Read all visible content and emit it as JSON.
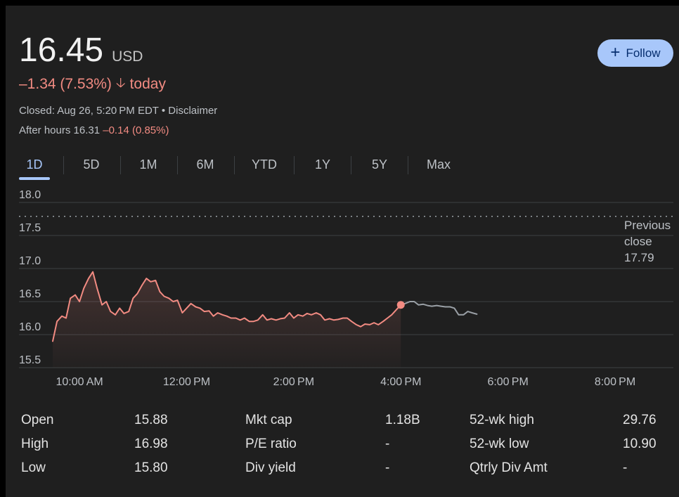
{
  "header": {
    "price": "16.45",
    "currency": "USD",
    "change": "–1.34 (7.53%)",
    "change_suffix": "today",
    "closed_text": "Closed: Aug 26, 5:20 PM EDT",
    "separator": "•",
    "disclaimer": "Disclaimer",
    "after_hours_label": "After hours 16.31",
    "after_hours_change": "–0.14 (0.85%)",
    "negative_color": "#f28b82"
  },
  "follow_button": {
    "label": "Follow",
    "icon": "plus-icon"
  },
  "tabs": [
    {
      "label": "1D",
      "active": true
    },
    {
      "label": "5D",
      "active": false
    },
    {
      "label": "1M",
      "active": false
    },
    {
      "label": "6M",
      "active": false
    },
    {
      "label": "YTD",
      "active": false
    },
    {
      "label": "1Y",
      "active": false
    },
    {
      "label": "5Y",
      "active": false
    },
    {
      "label": "Max",
      "active": false
    }
  ],
  "chart_data": {
    "type": "line",
    "y_ticks": [
      "18.0",
      "17.5",
      "17.0",
      "16.5",
      "16.0",
      "15.5"
    ],
    "ylim": [
      15.5,
      18.0
    ],
    "x_ticks": [
      "10:00 AM",
      "12:00 PM",
      "2:00 PM",
      "4:00 PM",
      "6:00 PM",
      "8:00 PM"
    ],
    "x_range_hours": [
      9.5,
      20.0
    ],
    "previous_close": {
      "label_lines": [
        "Previous",
        "close",
        "17.79"
      ],
      "value": 17.79
    },
    "series": [
      {
        "session": "regular",
        "color": "#f28b82",
        "x": [
          9.5,
          9.58,
          9.67,
          9.75,
          9.83,
          9.92,
          10.0,
          10.08,
          10.17,
          10.25,
          10.33,
          10.42,
          10.5,
          10.58,
          10.67,
          10.75,
          10.83,
          10.92,
          11.0,
          11.08,
          11.17,
          11.25,
          11.33,
          11.42,
          11.5,
          11.58,
          11.67,
          11.75,
          11.83,
          11.92,
          12.0,
          12.08,
          12.17,
          12.25,
          12.33,
          12.42,
          12.5,
          12.58,
          12.67,
          12.75,
          12.83,
          12.92,
          13.0,
          13.08,
          13.17,
          13.25,
          13.33,
          13.42,
          13.5,
          13.58,
          13.67,
          13.75,
          13.83,
          13.92,
          14.0,
          14.08,
          14.17,
          14.25,
          14.33,
          14.42,
          14.5,
          14.58,
          14.67,
          14.75,
          14.83,
          14.92,
          15.0,
          15.08,
          15.17,
          15.25,
          15.33,
          15.42,
          15.5,
          15.58,
          15.67,
          15.75,
          15.83,
          15.92,
          16.0
        ],
        "values": [
          15.9,
          16.2,
          16.28,
          16.25,
          16.55,
          16.6,
          16.5,
          16.7,
          16.85,
          16.95,
          16.7,
          16.45,
          16.5,
          16.35,
          16.3,
          16.4,
          16.32,
          16.35,
          16.55,
          16.62,
          16.75,
          16.85,
          16.8,
          16.82,
          16.65,
          16.58,
          16.55,
          16.5,
          16.52,
          16.33,
          16.4,
          16.47,
          16.42,
          16.4,
          16.35,
          16.36,
          16.28,
          16.33,
          16.3,
          16.28,
          16.25,
          16.25,
          16.22,
          16.25,
          16.2,
          16.2,
          16.22,
          16.3,
          16.22,
          16.24,
          16.22,
          16.24,
          16.25,
          16.33,
          16.25,
          16.3,
          16.28,
          16.32,
          16.3,
          16.33,
          16.3,
          16.22,
          16.24,
          16.22,
          16.23,
          16.25,
          16.25,
          16.2,
          16.15,
          16.12,
          16.16,
          16.15,
          16.18,
          16.15,
          16.2,
          16.25,
          16.3,
          16.38,
          16.45
        ]
      },
      {
        "session": "after-hours",
        "color": "#9aa0a6",
        "x": [
          16.0,
          16.08,
          16.17,
          16.25,
          16.33,
          16.42,
          16.5,
          16.58,
          16.67,
          16.75,
          16.83,
          16.92,
          17.0,
          17.08,
          17.17,
          17.25,
          17.33,
          17.42
        ],
        "values": [
          16.45,
          16.47,
          16.5,
          16.5,
          16.45,
          16.46,
          16.44,
          16.43,
          16.44,
          16.43,
          16.42,
          16.42,
          16.4,
          16.3,
          16.3,
          16.35,
          16.33,
          16.31
        ]
      }
    ]
  },
  "stats": {
    "col1": [
      {
        "label": "Open",
        "value": "15.88"
      },
      {
        "label": "High",
        "value": "16.98"
      },
      {
        "label": "Low",
        "value": "15.80"
      }
    ],
    "col2": [
      {
        "label": "Mkt cap",
        "value": "1.18B"
      },
      {
        "label": "P/E ratio",
        "value": "-"
      },
      {
        "label": "Div yield",
        "value": "-"
      }
    ],
    "col3": [
      {
        "label": "52-wk high",
        "value": "29.76"
      },
      {
        "label": "52-wk low",
        "value": "10.90"
      },
      {
        "label": "Qtrly Div Amt",
        "value": "-"
      }
    ]
  }
}
